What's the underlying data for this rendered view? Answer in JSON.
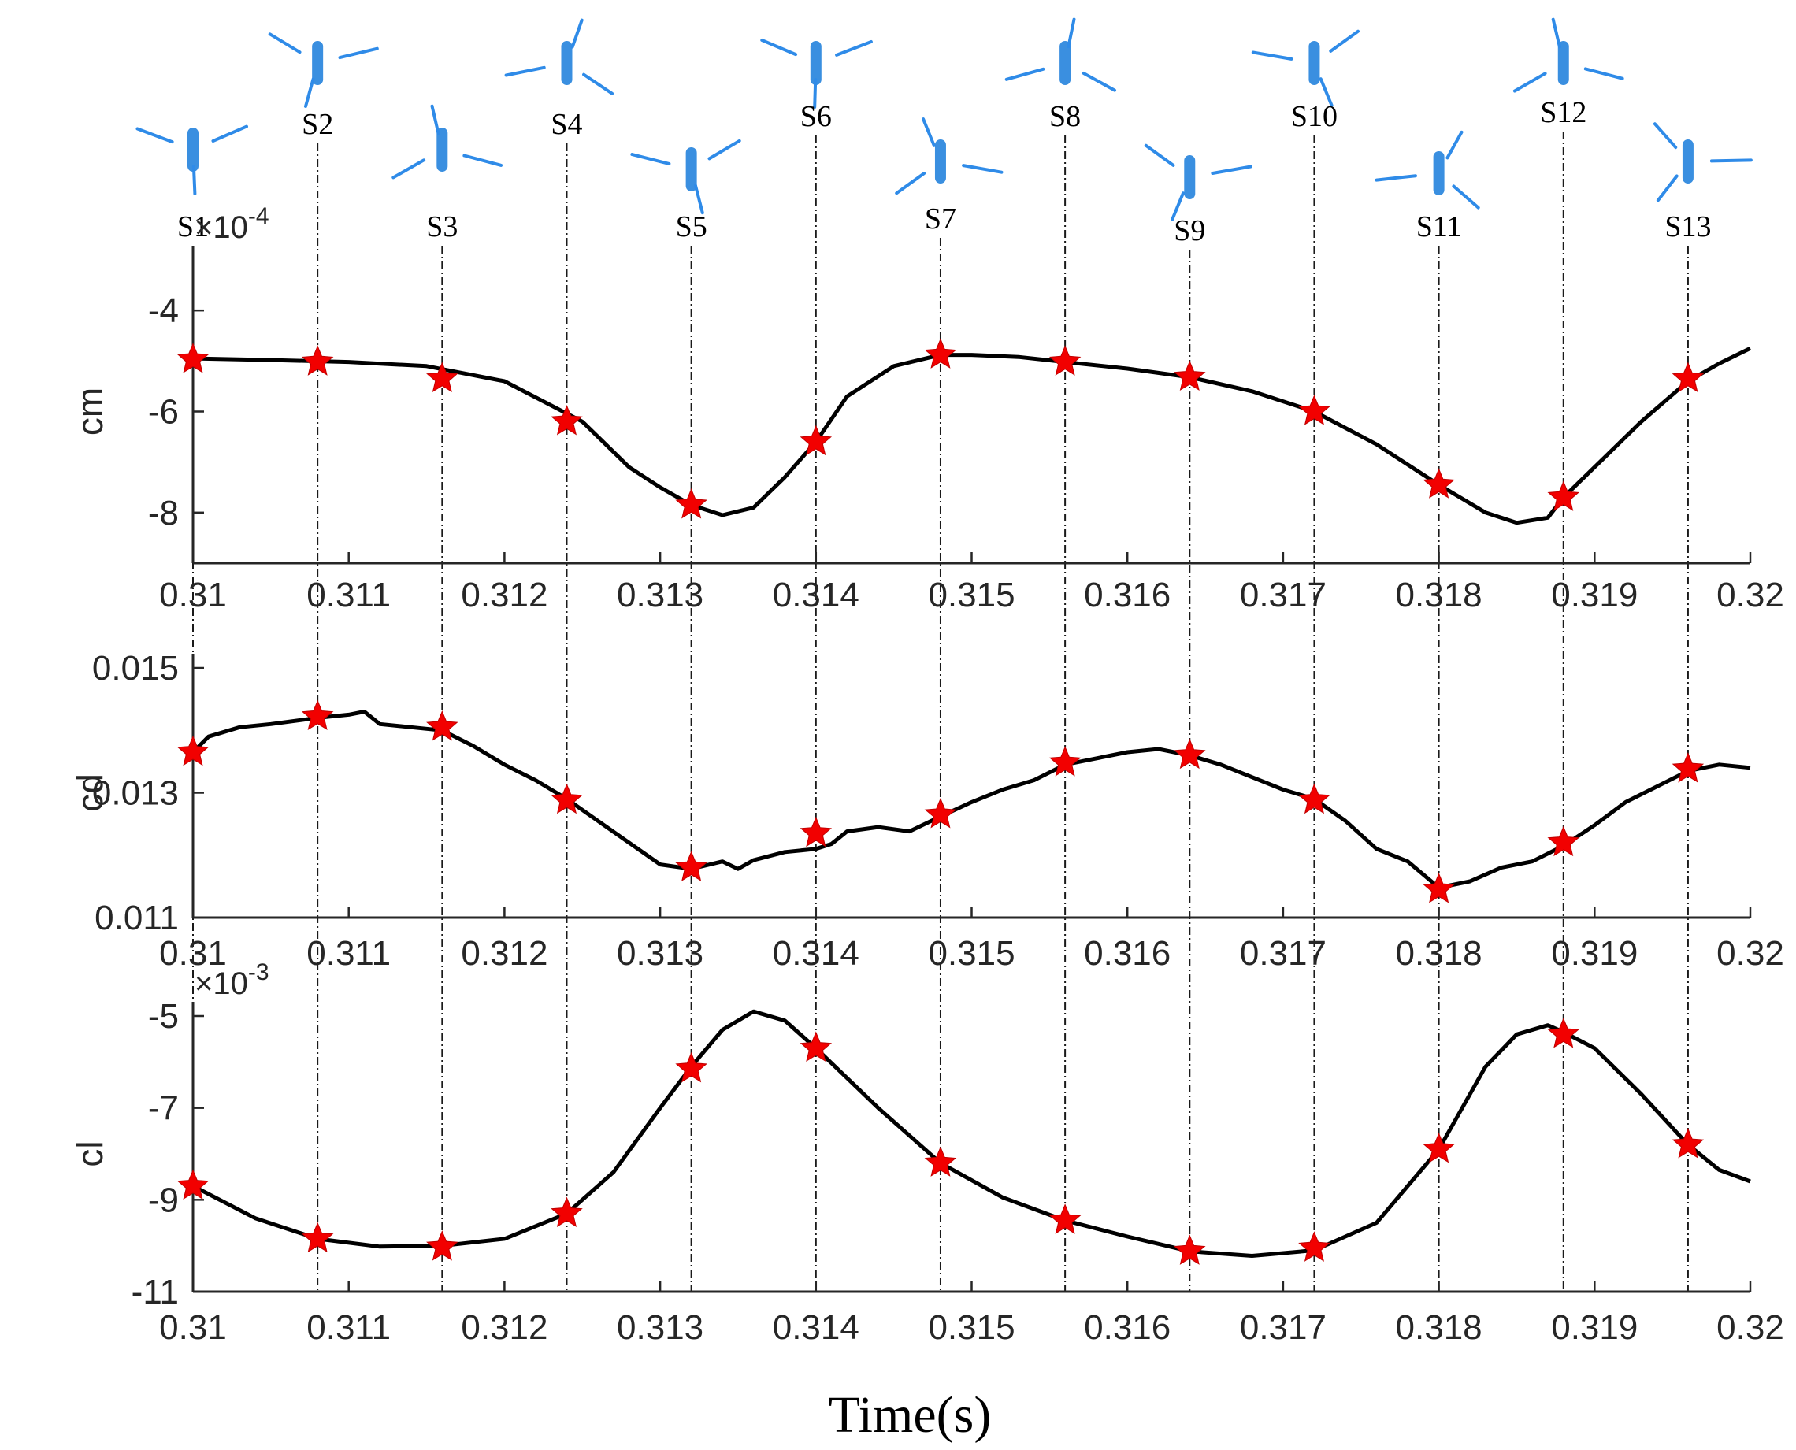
{
  "colors": {
    "curve": "#000000",
    "marker": "#f20000",
    "rotor": "#2f8be8",
    "axis": "#262626"
  },
  "x_axis_title": "Time(s)",
  "snapshots": [
    "S1",
    "S2",
    "S3",
    "S4",
    "S5",
    "S6",
    "S7",
    "S8",
    "S9",
    "S10",
    "S11",
    "S12",
    "S13"
  ],
  "chart_data": [
    {
      "type": "line",
      "ylabel": "cm",
      "multiplier_base": "×10",
      "multiplier_exponent": "-4",
      "xlim": [
        0.31,
        0.32
      ],
      "ylim": [
        -9,
        -3
      ],
      "xticks": [
        "0.31",
        "0.311",
        "0.312",
        "0.313",
        "0.314",
        "0.315",
        "0.316",
        "0.317",
        "0.318",
        "0.319",
        "0.32"
      ],
      "yticks": [
        "-4",
        "-6",
        "-8"
      ],
      "ytick_values": [
        -4,
        -6,
        -8
      ],
      "series": [
        {
          "x": [
            0.31,
            0.3105,
            0.311,
            0.3115,
            0.312,
            0.3125,
            0.3128,
            0.313,
            0.3132,
            0.3134,
            0.3136,
            0.3138,
            0.314,
            0.3142,
            0.3145,
            0.3148,
            0.315,
            0.3153,
            0.3156,
            0.316,
            0.3164,
            0.3168,
            0.3172,
            0.3176,
            0.318,
            0.3183,
            0.3185,
            0.3187,
            0.3188,
            0.319,
            0.3193,
            0.3196,
            0.3198,
            0.32
          ],
          "y": [
            -4.95,
            -4.98,
            -5.02,
            -5.1,
            -5.4,
            -6.2,
            -7.1,
            -7.5,
            -7.85,
            -8.05,
            -7.9,
            -7.3,
            -6.6,
            -5.7,
            -5.1,
            -4.88,
            -4.88,
            -4.92,
            -5.02,
            -5.15,
            -5.32,
            -5.6,
            -6.0,
            -6.65,
            -7.45,
            -8.0,
            -8.2,
            -8.1,
            -7.7,
            -7.1,
            -6.2,
            -5.4,
            -5.05,
            -4.75
          ]
        }
      ],
      "markers": {
        "x": [
          0.31,
          0.3108,
          0.3116,
          0.3124,
          0.3132,
          0.314,
          0.3148,
          0.3156,
          0.3164,
          0.3172,
          0.318,
          0.3188,
          0.3196
        ],
        "y": [
          -4.97,
          -5.02,
          -5.35,
          -6.2,
          -7.85,
          -6.6,
          -4.88,
          -5.02,
          -5.32,
          -6.0,
          -7.45,
          -7.7,
          -5.35
        ]
      }
    },
    {
      "type": "line",
      "ylabel": "cd",
      "xlim": [
        0.31,
        0.32
      ],
      "ylim": [
        0.011,
        0.015
      ],
      "xticks": [
        "0.31",
        "0.311",
        "0.312",
        "0.313",
        "0.314",
        "0.315",
        "0.316",
        "0.317",
        "0.318",
        "0.319",
        "0.32"
      ],
      "yticks": [
        "0.011",
        "0.013",
        "0.015"
      ],
      "ytick_values": [
        0.011,
        0.013,
        0.015
      ],
      "series": [
        {
          "x": [
            0.31,
            0.3101,
            0.3103,
            0.3105,
            0.3108,
            0.311,
            0.3111,
            0.3112,
            0.3114,
            0.3116,
            0.3118,
            0.312,
            0.3122,
            0.3124,
            0.3126,
            0.3128,
            0.313,
            0.3132,
            0.3134,
            0.3135,
            0.3136,
            0.3138,
            0.314,
            0.3141,
            0.3142,
            0.3144,
            0.3146,
            0.3148,
            0.315,
            0.3152,
            0.3154,
            0.3156,
            0.3158,
            0.316,
            0.3162,
            0.3164,
            0.3166,
            0.3168,
            0.317,
            0.3172,
            0.3174,
            0.3176,
            0.3178,
            0.318,
            0.3182,
            0.3184,
            0.3186,
            0.3188,
            0.319,
            0.3192,
            0.3194,
            0.3196,
            0.3198,
            0.32
          ],
          "y": [
            0.01365,
            0.0139,
            0.01405,
            0.0141,
            0.0142,
            0.01425,
            0.0143,
            0.0141,
            0.01405,
            0.014,
            0.01375,
            0.01345,
            0.0132,
            0.0129,
            0.01255,
            0.0122,
            0.01185,
            0.01178,
            0.0119,
            0.01178,
            0.01192,
            0.01205,
            0.0121,
            0.01218,
            0.01238,
            0.01245,
            0.01238,
            0.01262,
            0.01285,
            0.01305,
            0.0132,
            0.01345,
            0.01355,
            0.01365,
            0.0137,
            0.0136,
            0.01345,
            0.01325,
            0.01305,
            0.0129,
            0.01255,
            0.0121,
            0.0119,
            0.01148,
            0.01158,
            0.0118,
            0.0119,
            0.01215,
            0.01248,
            0.01285,
            0.0131,
            0.01335,
            0.01345,
            0.0134
          ]
        }
      ],
      "markers": {
        "x": [
          0.31,
          0.3108,
          0.3116,
          0.3124,
          0.3132,
          0.314,
          0.3148,
          0.3156,
          0.3164,
          0.3172,
          0.318,
          0.3188,
          0.3196
        ],
        "y": [
          0.01365,
          0.01422,
          0.01405,
          0.01288,
          0.0118,
          0.01235,
          0.01265,
          0.01348,
          0.0136,
          0.01288,
          0.01145,
          0.0122,
          0.01338
        ]
      }
    },
    {
      "type": "line",
      "ylabel": "cl",
      "multiplier_base": "×10",
      "multiplier_exponent": "-3",
      "xlim": [
        0.31,
        0.32
      ],
      "ylim": [
        -11,
        -5
      ],
      "xticks": [
        "0.31",
        "0.311",
        "0.312",
        "0.313",
        "0.314",
        "0.315",
        "0.316",
        "0.317",
        "0.318",
        "0.319",
        "0.32"
      ],
      "yticks": [
        "-5",
        "-7",
        "-9",
        "-11"
      ],
      "ytick_values": [
        -5,
        -7,
        -9,
        -11
      ],
      "series": [
        {
          "x": [
            0.31,
            0.3104,
            0.3108,
            0.3112,
            0.3116,
            0.312,
            0.3124,
            0.3127,
            0.313,
            0.3132,
            0.3134,
            0.3136,
            0.3138,
            0.314,
            0.3144,
            0.3148,
            0.3152,
            0.3156,
            0.316,
            0.3164,
            0.3168,
            0.3172,
            0.3176,
            0.318,
            0.3183,
            0.3185,
            0.3187,
            0.3188,
            0.319,
            0.3193,
            0.3196,
            0.3198,
            0.32
          ],
          "y": [
            -8.7,
            -9.4,
            -9.85,
            -10.02,
            -10.0,
            -9.85,
            -9.3,
            -8.4,
            -7.0,
            -6.1,
            -5.3,
            -4.9,
            -5.1,
            -5.7,
            -7.0,
            -8.2,
            -8.95,
            -9.45,
            -9.8,
            -10.12,
            -10.22,
            -10.1,
            -9.5,
            -7.9,
            -6.1,
            -5.4,
            -5.2,
            -5.35,
            -5.7,
            -6.7,
            -7.8,
            -8.35,
            -8.6
          ]
        }
      ],
      "markers": {
        "x": [
          0.31,
          0.3108,
          0.3116,
          0.3124,
          0.3132,
          0.314,
          0.3148,
          0.3156,
          0.3164,
          0.3172,
          0.318,
          0.3188,
          0.3196
        ],
        "y": [
          -8.7,
          -9.85,
          -10.03,
          -9.3,
          -6.15,
          -5.7,
          -8.2,
          -9.45,
          -10.12,
          -10.05,
          -7.9,
          -5.4,
          -7.8
        ]
      }
    }
  ]
}
